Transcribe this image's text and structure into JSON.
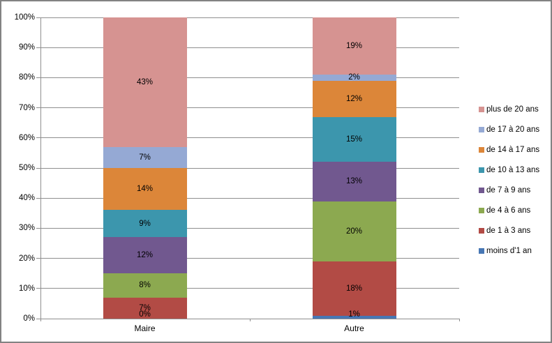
{
  "chart_data": {
    "type": "bar",
    "subtype": "stacked-100-column",
    "title": "",
    "xlabel": "",
    "ylabel": "",
    "categories": [
      "Maire",
      "Autre"
    ],
    "series": [
      {
        "name": "moins d'1 an",
        "color": "#4777B4",
        "values": [
          0,
          1
        ]
      },
      {
        "name": "de 1 à 3 ans",
        "color": "#B24B45",
        "values": [
          7,
          18
        ]
      },
      {
        "name": "de 4 à 6 ans",
        "color": "#8CA950",
        "values": [
          8,
          20
        ]
      },
      {
        "name": "de 7 à 9 ans",
        "color": "#71588F",
        "values": [
          12,
          13
        ]
      },
      {
        "name": "de 10 à 13 ans",
        "color": "#3C96AD",
        "values": [
          9,
          15
        ]
      },
      {
        "name": "de 14 à 17 ans",
        "color": "#DC8639",
        "values": [
          14,
          12
        ]
      },
      {
        "name": "de 17 à 20 ans",
        "color": "#95A9D4",
        "values": [
          7,
          2
        ]
      },
      {
        "name": "plus de 20 ans",
        "color": "#D69391",
        "values": [
          43,
          19
        ]
      }
    ],
    "data_label_suffix": "%",
    "y_ticks": [
      "0%",
      "10%",
      "20%",
      "30%",
      "40%",
      "50%",
      "60%",
      "70%",
      "80%",
      "90%",
      "100%"
    ],
    "ylim": [
      0,
      100
    ],
    "grid": true,
    "legend_position": "right",
    "legend_order_top_to_bottom": [
      "plus de 20 ans",
      "de 17 à 20 ans",
      "de 14 à 17 ans",
      "de 10 à 13 ans",
      "de 7 à 9 ans",
      "de 4 à 6 ans",
      "de 1 à 3 ans",
      "moins d'1 an"
    ]
  },
  "colors": {
    "grid": "#8E8E8E",
    "axis": "#8E8E8E",
    "frame_border": "#828282",
    "background": "#FFFFFF",
    "label_text": "#000000"
  }
}
